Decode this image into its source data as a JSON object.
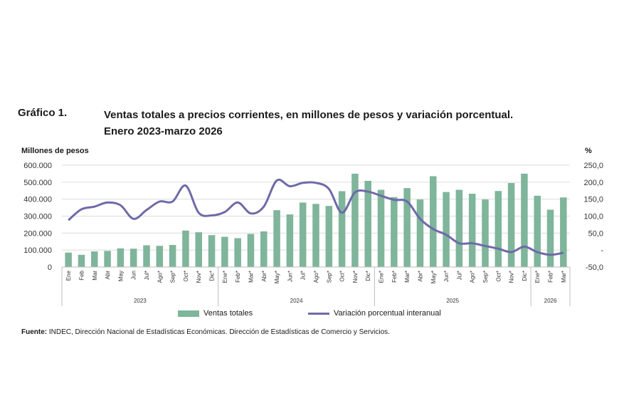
{
  "heading": {
    "label": "Gráfico 1.",
    "title_line1": "Ventas totales a precios corrientes, en millones de pesos y variación porcentual.",
    "title_line2": "Enero 2023-marzo 2026"
  },
  "colors": {
    "bars": "#7fb59b",
    "line": "#6e6aa8",
    "grid": "#dcdcdc"
  },
  "footer": {
    "source_label": "Fuente:",
    "source_text": " INDEC, Dirección Nacional de Estadísticas Económicas. Dirección de Estadísticas de Comercio y Servicios."
  },
  "chart_data": {
    "type": "bar",
    "title": "",
    "ylabel": "Millones de pesos",
    "y2label": "%",
    "ylim": [
      0,
      600000
    ],
    "y2lim": [
      -50,
      250
    ],
    "yticks": [
      "0",
      "100.000",
      "200.000",
      "300.000",
      "400.000",
      "500.000",
      "600.000"
    ],
    "y2ticks": [
      "-50,0",
      "-",
      "50,0",
      "100,0",
      "150,0",
      "200,0",
      "250,0"
    ],
    "grid": true,
    "legend_position": "bottom",
    "categories": [
      "Ene",
      "Feb",
      "Mar",
      "Abr",
      "May",
      "Jun",
      "Jul*",
      "Ago*",
      "Sep*",
      "Oct*",
      "Nov*",
      "Dic*",
      "Ene*",
      "Feb*",
      "Mar*",
      "Abr*",
      "May*",
      "Jun*",
      "Jul*",
      "Ago*",
      "Sep*",
      "Oct*",
      "Nov*",
      "Dic*",
      "Ene*",
      "Feb*",
      "Mar*",
      "Abr*",
      "May*",
      "Jun*",
      "Jul*",
      "Ago*",
      "Sep*",
      "Oct*",
      "Nov*",
      "Dic*",
      "Ene*",
      "Feb*",
      "Mar*"
    ],
    "years": [
      {
        "label": "2023",
        "months": 12
      },
      {
        "label": "2024",
        "months": 12
      },
      {
        "label": "2025",
        "months": 12
      },
      {
        "label": "2026",
        "months": 3
      }
    ],
    "series": [
      {
        "name": "Ventas totales",
        "type": "bar",
        "values": [
          85000,
          72000,
          92000,
          95000,
          110000,
          108000,
          128000,
          125000,
          130000,
          215000,
          205000,
          188000,
          178000,
          170000,
          195000,
          210000,
          335000,
          310000,
          380000,
          372000,
          360000,
          447000,
          550000,
          508000,
          455000,
          412000,
          465000,
          398000,
          535000,
          442000,
          455000,
          432000,
          398000,
          448000,
          495000,
          550000,
          420000,
          338000,
          410000
        ]
      },
      {
        "name": "Variación porcentual interanual",
        "type": "line",
        "axis": "right",
        "values": [
          88,
          120,
          128,
          140,
          132,
          92,
          118,
          143,
          143,
          190,
          110,
          102,
          112,
          140,
          108,
          128,
          205,
          188,
          198,
          198,
          180,
          110,
          170,
          172,
          160,
          148,
          143,
          92,
          62,
          45,
          20,
          20,
          12,
          4,
          -6,
          10,
          -6,
          -14,
          -8
        ]
      }
    ]
  }
}
